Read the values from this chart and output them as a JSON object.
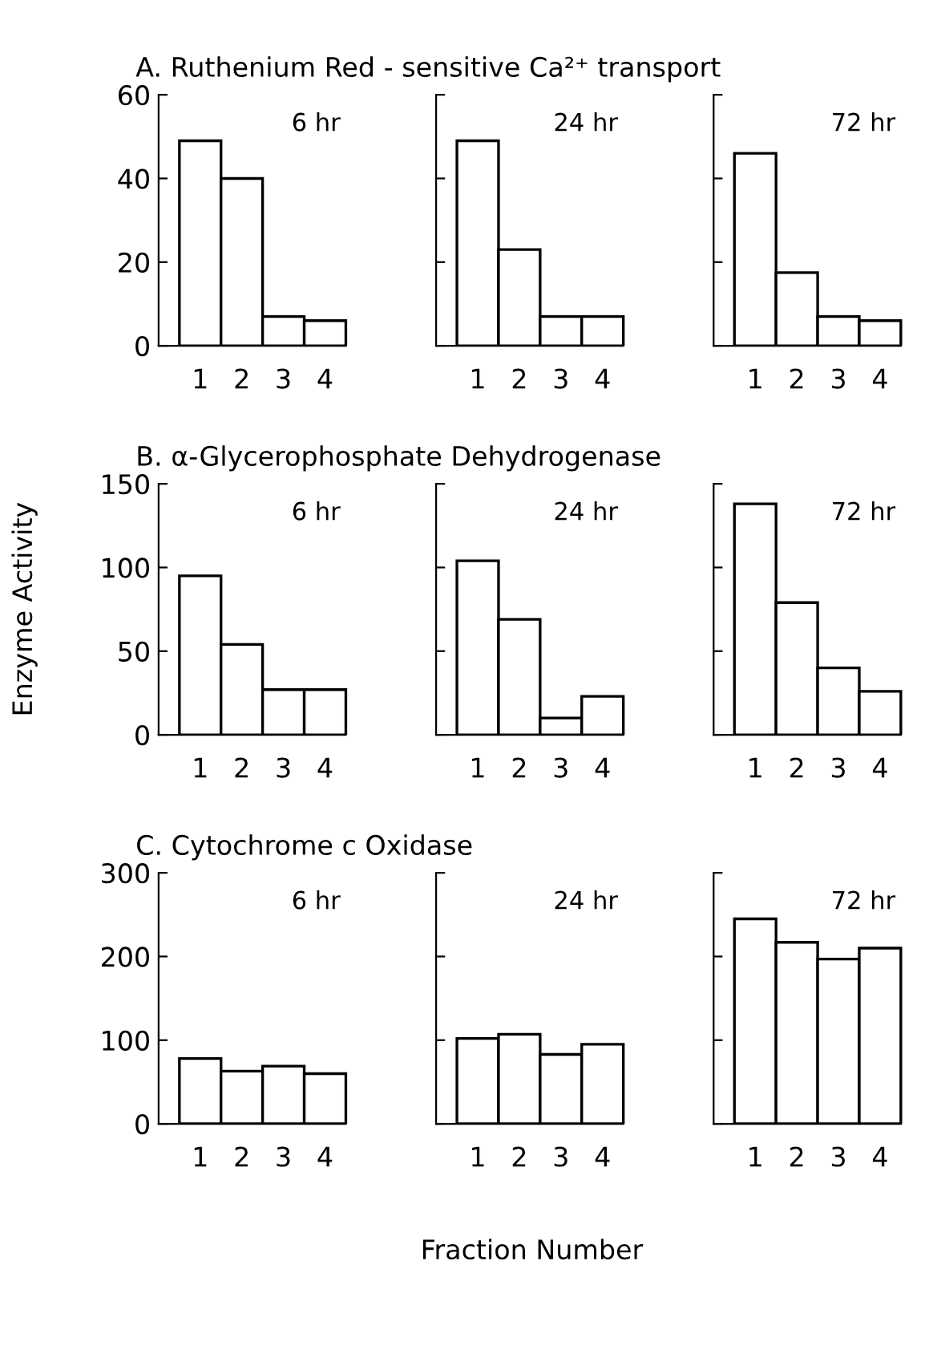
{
  "chart_data": [
    {
      "type": "bar",
      "title": "A. Ruthenium Red - sensitive Ca²⁺ transport",
      "subtitle": "6 hr",
      "categories": [
        "1",
        "2",
        "3",
        "4"
      ],
      "values": [
        49,
        40,
        7,
        6
      ],
      "color": "#ffffff",
      "ylim": [
        0,
        60
      ],
      "yticks": [
        0,
        20,
        40,
        60
      ],
      "grid": false
    },
    {
      "type": "bar",
      "subtitle": "24 hr",
      "categories": [
        "1",
        "2",
        "3",
        "4"
      ],
      "values": [
        49,
        23,
        7,
        7
      ],
      "color": "#ffffff",
      "ylim": [
        0,
        60
      ],
      "yticks": [
        0,
        20,
        40,
        60
      ],
      "grid": false,
      "tick_labels": "x"
    },
    {
      "type": "bar",
      "subtitle": "72 hr",
      "categories": [
        "1",
        "2",
        "3",
        "4"
      ],
      "values": [
        46,
        17.5,
        7,
        6
      ],
      "color": "#ffffff",
      "ylim": [
        0,
        60
      ],
      "yticks": [
        0,
        20,
        40,
        60
      ],
      "grid": false,
      "tick_labels": "x"
    },
    {
      "type": "bar",
      "title": "B. α-Glycerophosphate Dehydrogenase",
      "subtitle": "6 hr",
      "ylabel": "Enzyme Activity",
      "categories": [
        "1",
        "2",
        "3",
        "4"
      ],
      "values": [
        95,
        54,
        27,
        27
      ],
      "color": "#ffffff",
      "ylim": [
        0,
        150
      ],
      "yticks": [
        0,
        50,
        100,
        150
      ],
      "grid": false
    },
    {
      "type": "bar",
      "subtitle": "24 hr",
      "categories": [
        "1",
        "2",
        "3",
        "4"
      ],
      "values": [
        104,
        69,
        10,
        23
      ],
      "color": "#ffffff",
      "ylim": [
        0,
        150
      ],
      "yticks": [
        0,
        50,
        100,
        150
      ],
      "grid": false,
      "tick_labels": "x"
    },
    {
      "type": "bar",
      "subtitle": "72 hr",
      "categories": [
        "1",
        "2",
        "3",
        "4"
      ],
      "values": [
        138,
        79,
        40,
        26
      ],
      "color": "#ffffff",
      "ylim": [
        0,
        150
      ],
      "yticks": [
        0,
        50,
        100,
        150
      ],
      "grid": false,
      "tick_labels": "x"
    },
    {
      "type": "bar",
      "title": "C. Cytochrome c Oxidase",
      "subtitle": "6 hr",
      "categories": [
        "1",
        "2",
        "3",
        "4"
      ],
      "values": [
        78,
        63,
        69,
        60
      ],
      "color": "#ffffff",
      "ylim": [
        0,
        300
      ],
      "yticks": [
        0,
        100,
        200,
        300
      ],
      "grid": false
    },
    {
      "type": "bar",
      "subtitle": "24 hr",
      "xlabel": "Fraction Number",
      "categories": [
        "1",
        "2",
        "3",
        "4"
      ],
      "values": [
        102,
        107,
        83,
        95
      ],
      "color": "#ffffff",
      "ylim": [
        0,
        300
      ],
      "yticks": [
        0,
        100,
        200,
        300
      ],
      "grid": false,
      "tick_labels": "x"
    },
    {
      "type": "bar",
      "subtitle": "72 hr",
      "categories": [
        "1",
        "2",
        "3",
        "4"
      ],
      "values": [
        245,
        217,
        197,
        210
      ],
      "color": "#ffffff",
      "ylim": [
        0,
        300
      ],
      "yticks": [
        0,
        100,
        200,
        300
      ],
      "grid": false,
      "tick_labels": "x"
    }
  ]
}
